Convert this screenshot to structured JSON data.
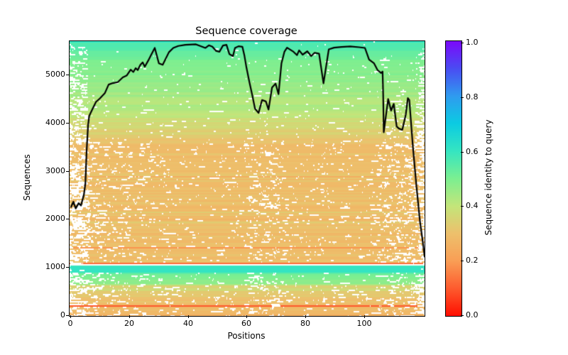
{
  "title": "Sequence coverage",
  "axes": {
    "xlabel": "Positions",
    "ylabel": "Sequences",
    "x_ticks": [
      "0",
      "20",
      "40",
      "60",
      "80",
      "100"
    ],
    "y_ticks": [
      "0",
      "1000",
      "2000",
      "3000",
      "4000",
      "5000"
    ]
  },
  "colorbar": {
    "label": "Sequence identity to query",
    "ticks": [
      "0.0",
      "0.2",
      "0.4",
      "0.6",
      "0.8",
      "1.0"
    ],
    "stops": [
      [
        0,
        "#ff0e00"
      ],
      [
        0.1,
        "#fd5b2e"
      ],
      [
        0.2,
        "#f99e55"
      ],
      [
        0.3,
        "#edc06c"
      ],
      [
        0.4,
        "#c3e57a"
      ],
      [
        0.5,
        "#7bef91"
      ],
      [
        0.6,
        "#35e5c1"
      ],
      [
        0.7,
        "#0bcbe2"
      ],
      [
        0.8,
        "#2f9bef"
      ],
      [
        0.9,
        "#4a4cf2"
      ],
      [
        1,
        "#7b09fa"
      ]
    ]
  },
  "chart_data": {
    "type": "heatmap+line",
    "title": "Sequence coverage",
    "xlabel": "Positions",
    "ylabel": "Sequences",
    "x_range": [
      0,
      120.5
    ],
    "y_range": [
      0,
      5700
    ],
    "colorbar_range": [
      0.0,
      1.0
    ],
    "line_color": "#000000",
    "coverage_line_points": [
      [
        0,
        2260
      ],
      [
        0.8,
        2370
      ],
      [
        1.6,
        2230
      ],
      [
        2.6,
        2340
      ],
      [
        3.4,
        2290
      ],
      [
        4.4,
        2520
      ],
      [
        4.9,
        2750
      ],
      [
        5.3,
        3400
      ],
      [
        5.8,
        3950
      ],
      [
        6.2,
        4150
      ],
      [
        7.2,
        4280
      ],
      [
        8.5,
        4440
      ],
      [
        9.8,
        4510
      ],
      [
        11.5,
        4620
      ],
      [
        12.8,
        4800
      ],
      [
        14.2,
        4830
      ],
      [
        15.9,
        4850
      ],
      [
        17.6,
        4950
      ],
      [
        19,
        4990
      ],
      [
        20.3,
        5110
      ],
      [
        21.2,
        5060
      ],
      [
        22,
        5140
      ],
      [
        22.7,
        5100
      ],
      [
        23.6,
        5210
      ],
      [
        24.4,
        5260
      ],
      [
        25.1,
        5170
      ],
      [
        26.3,
        5300
      ],
      [
        27.3,
        5420
      ],
      [
        28.5,
        5560
      ],
      [
        29.9,
        5240
      ],
      [
        31.2,
        5210
      ],
      [
        33.3,
        5470
      ],
      [
        34.8,
        5560
      ],
      [
        36.5,
        5600
      ],
      [
        38.9,
        5625
      ],
      [
        42.5,
        5635
      ],
      [
        45.7,
        5560
      ],
      [
        46.9,
        5615
      ],
      [
        48.1,
        5585
      ],
      [
        49.3,
        5500
      ],
      [
        50.5,
        5480
      ],
      [
        51.7,
        5610
      ],
      [
        52.9,
        5625
      ],
      [
        53.9,
        5430
      ],
      [
        55.1,
        5390
      ],
      [
        55.8,
        5560
      ],
      [
        57,
        5595
      ],
      [
        58.3,
        5585
      ],
      [
        59,
        5400
      ],
      [
        59.7,
        5150
      ],
      [
        60.7,
        4850
      ],
      [
        61.6,
        4600
      ],
      [
        62.6,
        4300
      ],
      [
        63.8,
        4210
      ],
      [
        65,
        4480
      ],
      [
        66.3,
        4450
      ],
      [
        67.2,
        4280
      ],
      [
        68.4,
        4740
      ],
      [
        69.6,
        4820
      ],
      [
        70.6,
        4600
      ],
      [
        71.6,
        5240
      ],
      [
        72.6,
        5480
      ],
      [
        73.5,
        5565
      ],
      [
        75.7,
        5480
      ],
      [
        76.9,
        5410
      ],
      [
        77.6,
        5510
      ],
      [
        78.8,
        5420
      ],
      [
        80.4,
        5490
      ],
      [
        81.7,
        5390
      ],
      [
        82.9,
        5460
      ],
      [
        84.4,
        5440
      ],
      [
        85.9,
        4825
      ],
      [
        87.7,
        5530
      ],
      [
        89.5,
        5565
      ],
      [
        92,
        5580
      ],
      [
        95,
        5590
      ],
      [
        98,
        5575
      ],
      [
        100,
        5560
      ],
      [
        101.4,
        5320
      ],
      [
        103.1,
        5240
      ],
      [
        104.3,
        5100
      ],
      [
        105.5,
        5040
      ],
      [
        106,
        5070
      ],
      [
        106.2,
        4600
      ],
      [
        106.4,
        3810
      ],
      [
        107.9,
        4500
      ],
      [
        108.9,
        4260
      ],
      [
        109.8,
        4400
      ],
      [
        110.8,
        3930
      ],
      [
        111.5,
        3890
      ],
      [
        112.7,
        3860
      ],
      [
        113.9,
        4180
      ],
      [
        114.6,
        4520
      ],
      [
        115.1,
        4480
      ],
      [
        116.3,
        3520
      ],
      [
        117.5,
        2710
      ],
      [
        118.7,
        1970
      ],
      [
        119.7,
        1530
      ],
      [
        120.3,
        1230
      ]
    ],
    "identity_profile": [
      [
        0,
        0.27
      ],
      [
        210,
        0.28
      ],
      [
        340,
        0.31
      ],
      [
        630,
        0.36
      ],
      [
        660,
        0.47
      ],
      [
        870,
        0.51
      ],
      [
        905,
        0.6
      ],
      [
        1030,
        0.6
      ],
      [
        1072,
        0.6
      ],
      [
        1078,
        0.16
      ],
      [
        1092,
        0.16
      ],
      [
        1110,
        0.29
      ],
      [
        3550,
        0.3
      ],
      [
        3950,
        0.36
      ],
      [
        4300,
        0.42
      ],
      [
        4900,
        0.47
      ],
      [
        5250,
        0.5
      ],
      [
        5500,
        0.54
      ],
      [
        5700,
        0.575
      ]
    ],
    "outlier_rows": [
      {
        "seq": 15,
        "identity": 0.18
      },
      {
        "seq": 212,
        "identity": 0.1
      },
      {
        "seq": 1425,
        "identity": 0.17
      }
    ],
    "white_band": {
      "from": 1040,
      "to": 1062
    },
    "gap_model": {
      "seed": 7,
      "enter_k": 0.22,
      "exit_k": 0.32,
      "exit_base": 0.03,
      "regions": [
        {
          "to": 650,
          "boost": 0.88,
          "floor": 0.11
        },
        {
          "to": 900,
          "boost": 0.95,
          "floor": 0.07
        },
        {
          "to": 1100,
          "boost": 1.45,
          "floor": 0.012
        },
        {
          "to": 3600,
          "boost": 0.93,
          "floor": 0.085
        },
        {
          "to": 4500,
          "boost": 1.12,
          "floor": 0.05
        },
        {
          "to": 5250,
          "boost": 1.35,
          "floor": 0.035
        },
        {
          "to": 5701,
          "boost": 1.5,
          "floor": 0.028
        }
      ]
    }
  }
}
